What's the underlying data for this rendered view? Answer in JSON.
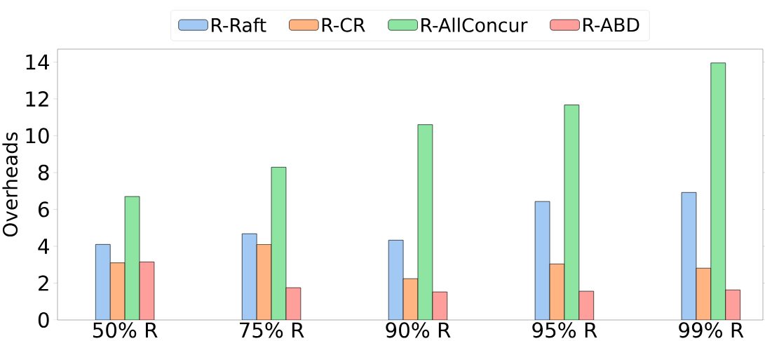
{
  "chart_data": {
    "type": "bar",
    "ylabel": "Overheads",
    "categories": [
      "50% R",
      "75% R",
      "90% R",
      "95% R",
      "99% R"
    ],
    "series": [
      {
        "name": "R-Raft",
        "color": "#a1c9f4",
        "values": [
          4.1,
          4.68,
          4.33,
          6.43,
          6.92
        ]
      },
      {
        "name": "R-CR",
        "color": "#ffb482",
        "values": [
          3.1,
          4.1,
          2.24,
          3.04,
          2.81
        ]
      },
      {
        "name": "R-AllConcur",
        "color": "#8de5a1",
        "values": [
          6.7,
          8.29,
          10.6,
          11.67,
          13.95
        ]
      },
      {
        "name": "R-ABD",
        "color": "#ff9f9b",
        "values": [
          3.15,
          1.75,
          1.52,
          1.56,
          1.63
        ]
      }
    ],
    "ylim": [
      0,
      14.7
    ],
    "yticks": [
      0,
      2,
      4,
      6,
      8,
      10,
      12,
      14
    ],
    "legend": "top"
  }
}
